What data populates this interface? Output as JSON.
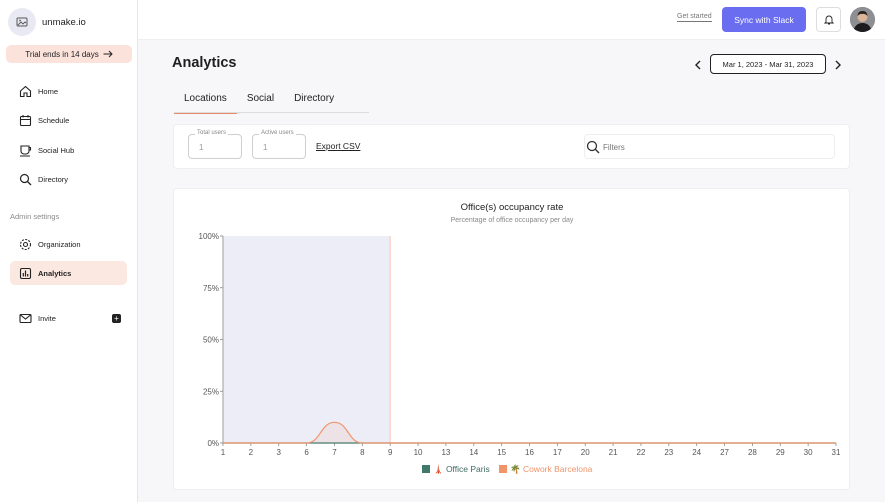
{
  "sidebar": {
    "brand": "unmake.io",
    "trial": "Trial ends in 14 days",
    "items": [
      {
        "label": "Home"
      },
      {
        "label": "Schedule"
      },
      {
        "label": "Social Hub"
      },
      {
        "label": "Directory"
      }
    ],
    "admin_label": "Admin settings",
    "admin_items": [
      {
        "label": "Organization"
      },
      {
        "label": "Analytics"
      }
    ],
    "invite": "Invite"
  },
  "topbar": {
    "get_started": "Get started",
    "slack": "Sync with Slack"
  },
  "main": {
    "title": "Analytics",
    "date_range": "Mar 1, 2023 - Mar 31, 2023",
    "tabs": [
      {
        "label": "Locations"
      },
      {
        "label": "Social"
      },
      {
        "label": "Directory"
      }
    ],
    "total_users_label": "Total users",
    "total_users_value": "1",
    "active_users_label": "Active users",
    "active_users_value": "1",
    "export": "Export CSV",
    "filters_placeholder": "Filters"
  },
  "colors": {
    "accent": "#6a6df0",
    "active_bg": "#fbe8e1",
    "paris": "#3f7a6b",
    "barcelona": "#f0956a"
  },
  "chart_data": {
    "type": "area",
    "title": "Office(s) occupancy rate",
    "subtitle": "Percentage of office occupancy per day",
    "x": [
      "1",
      "2",
      "3",
      "6",
      "7",
      "8",
      "9",
      "10",
      "13",
      "14",
      "15",
      "16",
      "17",
      "20",
      "21",
      "22",
      "23",
      "24",
      "27",
      "28",
      "29",
      "30",
      "31"
    ],
    "ylim": [
      0,
      100
    ],
    "yticks": [
      "0%",
      "25%",
      "50%",
      "75%",
      "100%"
    ],
    "highlight_range": [
      "1",
      "9"
    ],
    "series": [
      {
        "name": "🗼 Office Paris",
        "color": "#3f7a6b",
        "values": [
          0,
          0,
          0,
          0,
          0,
          0,
          0,
          0,
          0,
          0,
          0,
          0,
          0,
          0,
          0,
          0,
          0,
          0,
          0,
          0,
          0,
          0,
          0
        ]
      },
      {
        "name": "🌴 Cowork Barcelona",
        "color": "#f0956a",
        "values": [
          0,
          0,
          0,
          0,
          10,
          0,
          0,
          0,
          0,
          0,
          0,
          0,
          0,
          0,
          0,
          0,
          0,
          0,
          0,
          0,
          0,
          0,
          0
        ]
      }
    ]
  }
}
